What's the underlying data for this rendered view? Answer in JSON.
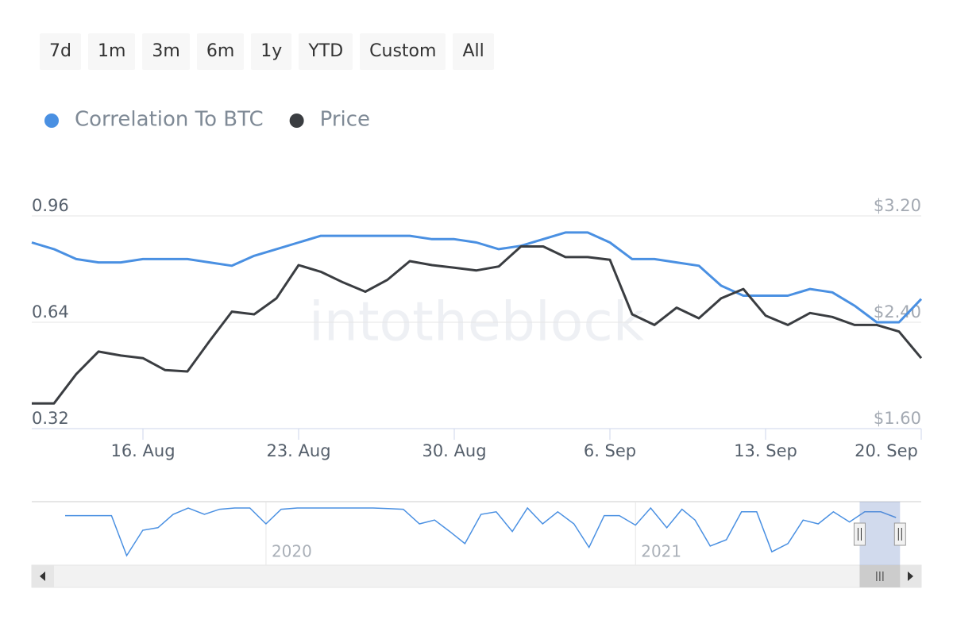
{
  "range_selector": {
    "buttons": [
      "7d",
      "1m",
      "3m",
      "6m",
      "1y",
      "YTD",
      "Custom",
      "All"
    ]
  },
  "watermark": "intotheblock",
  "chart_data": {
    "type": "line",
    "x": [
      "2021-08-11",
      "2021-08-12",
      "2021-08-13",
      "2021-08-14",
      "2021-08-15",
      "2021-08-16",
      "2021-08-17",
      "2021-08-18",
      "2021-08-19",
      "2021-08-20",
      "2021-08-21",
      "2021-08-22",
      "2021-08-23",
      "2021-08-24",
      "2021-08-25",
      "2021-08-26",
      "2021-08-27",
      "2021-08-28",
      "2021-08-29",
      "2021-08-30",
      "2021-08-31",
      "2021-09-01",
      "2021-09-02",
      "2021-09-03",
      "2021-09-04",
      "2021-09-05",
      "2021-09-06",
      "2021-09-07",
      "2021-09-08",
      "2021-09-09",
      "2021-09-10",
      "2021-09-11",
      "2021-09-12",
      "2021-09-13",
      "2021-09-14",
      "2021-09-15",
      "2021-09-16",
      "2021-09-17",
      "2021-09-18",
      "2021-09-19",
      "2021-09-20"
    ],
    "series": [
      {
        "name": "Correlation To BTC",
        "color": "#4a90e2",
        "axis": "y",
        "values": [
          0.88,
          0.86,
          0.83,
          0.82,
          0.82,
          0.83,
          0.83,
          0.83,
          0.82,
          0.81,
          0.84,
          0.86,
          0.88,
          0.9,
          0.9,
          0.9,
          0.9,
          0.9,
          0.89,
          0.89,
          0.88,
          0.86,
          0.87,
          0.89,
          0.91,
          0.91,
          0.88,
          0.83,
          0.83,
          0.82,
          0.81,
          0.75,
          0.72,
          0.72,
          0.72,
          0.74,
          0.73,
          0.69,
          0.64,
          0.64,
          0.71
        ]
      },
      {
        "name": "Price",
        "color": "#3a3d41",
        "axis": "y2",
        "values": [
          1.79,
          1.79,
          2.01,
          2.18,
          2.15,
          2.13,
          2.04,
          2.03,
          2.26,
          2.48,
          2.46,
          2.58,
          2.83,
          2.78,
          2.7,
          2.63,
          2.72,
          2.86,
          2.83,
          2.81,
          2.79,
          2.82,
          2.97,
          2.97,
          2.89,
          2.89,
          2.87,
          2.46,
          2.38,
          2.51,
          2.43,
          2.58,
          2.65,
          2.45,
          2.38,
          2.47,
          2.44,
          2.38,
          2.38,
          2.33,
          2.13
        ]
      }
    ],
    "xlim": [
      "2021-08-11",
      "2021-09-20"
    ],
    "xticks": [
      {
        "value": "2021-08-16",
        "label": "16. Aug"
      },
      {
        "value": "2021-08-23",
        "label": "23. Aug"
      },
      {
        "value": "2021-08-30",
        "label": "30. Aug"
      },
      {
        "value": "2021-09-06",
        "label": "6. Sep"
      },
      {
        "value": "2021-09-13",
        "label": "13. Sep"
      },
      {
        "value": "2021-09-20",
        "label": "20. Sep"
      }
    ],
    "ylim": [
      0.32,
      0.96
    ],
    "yticks": [
      0.32,
      0.64,
      0.96
    ],
    "y2lim": [
      1.6,
      3.2
    ],
    "y2ticks": [
      {
        "value": 1.6,
        "label": "$1.60"
      },
      {
        "value": 2.4,
        "label": "$2.40"
      },
      {
        "value": 3.2,
        "label": "$3.20"
      }
    ],
    "grid": true,
    "legend": "top-left",
    "navigator": {
      "color": "#4a90e2",
      "xlim": [
        "2019-05-14",
        "2021-10-11"
      ],
      "ylim": [
        0,
        1
      ],
      "xticks": [
        {
          "value": "2020-01-01",
          "label": "2020"
        },
        {
          "value": "2021-01-01",
          "label": "2021"
        }
      ],
      "x": [
        "2019-06-16",
        "2019-07-01",
        "2019-07-16",
        "2019-08-01",
        "2019-08-16",
        "2019-09-01",
        "2019-09-16",
        "2019-10-01",
        "2019-10-16",
        "2019-11-01",
        "2019-11-16",
        "2019-12-01",
        "2019-12-16",
        "2020-01-01",
        "2020-01-16",
        "2020-02-01",
        "2020-02-16",
        "2020-03-01",
        "2020-03-16",
        "2020-04-01",
        "2020-04-16",
        "2020-05-01",
        "2020-05-16",
        "2020-06-01",
        "2020-06-16",
        "2020-07-01",
        "2020-07-16",
        "2020-08-01",
        "2020-08-16",
        "2020-09-01",
        "2020-09-16",
        "2020-10-01",
        "2020-10-16",
        "2020-11-01",
        "2020-11-16",
        "2020-12-01",
        "2020-12-16",
        "2021-01-01",
        "2021-01-16",
        "2021-02-01",
        "2021-02-16",
        "2021-03-01",
        "2021-03-16",
        "2021-04-01",
        "2021-04-16",
        "2021-05-01",
        "2021-05-16",
        "2021-06-01",
        "2021-06-16",
        "2021-07-01",
        "2021-07-16",
        "2021-08-01",
        "2021-08-16",
        "2021-09-01",
        "2021-09-16"
      ],
      "values": [
        0.78,
        0.78,
        0.78,
        0.78,
        0.15,
        0.55,
        0.59,
        0.8,
        0.9,
        0.8,
        0.88,
        0.9,
        0.9,
        0.65,
        0.88,
        0.9,
        0.9,
        0.9,
        0.9,
        0.9,
        0.9,
        0.89,
        0.88,
        0.65,
        0.71,
        0.53,
        0.34,
        0.8,
        0.84,
        0.53,
        0.9,
        0.65,
        0.84,
        0.65,
        0.28,
        0.78,
        0.78,
        0.63,
        0.9,
        0.59,
        0.88,
        0.71,
        0.3,
        0.4,
        0.84,
        0.84,
        0.21,
        0.34,
        0.71,
        0.65,
        0.84,
        0.68,
        0.84,
        0.84,
        0.75
      ]
    }
  }
}
